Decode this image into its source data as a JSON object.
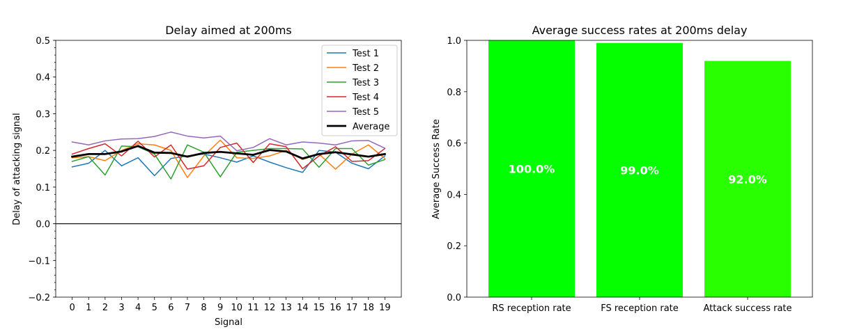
{
  "chart_data": [
    {
      "type": "line",
      "title": "Delay aimed at 200ms",
      "xlabel": "Signal",
      "ylabel": "Delay of attacking signal",
      "xlim": [
        -1,
        20
      ],
      "ylim": [
        -0.2,
        0.5
      ],
      "x_ticks": [
        "0",
        "1",
        "2",
        "3",
        "4",
        "5",
        "6",
        "7",
        "8",
        "9",
        "10",
        "11",
        "12",
        "13",
        "14",
        "15",
        "16",
        "17",
        "18",
        "19"
      ],
      "y_ticks": [
        "−0.2",
        "−0.1",
        "0.0",
        "0.1",
        "0.2",
        "0.3",
        "0.4",
        "0.5"
      ],
      "y_tick_values": [
        -0.2,
        -0.1,
        0.0,
        0.1,
        0.2,
        0.3,
        0.4,
        0.5
      ],
      "grid": false,
      "zero_line": true,
      "legend_position": "top-right",
      "x": [
        0,
        1,
        2,
        3,
        4,
        5,
        6,
        7,
        8,
        9,
        10,
        11,
        12,
        13,
        14,
        15,
        16,
        17,
        18,
        19
      ],
      "series": [
        {
          "name": "Test 1",
          "color": "#1f77b4",
          "width": 1.5,
          "values": [
            0.155,
            0.165,
            0.2,
            0.158,
            0.18,
            0.131,
            0.178,
            0.185,
            0.19,
            0.18,
            0.168,
            0.185,
            0.168,
            0.153,
            0.14,
            0.2,
            0.195,
            0.165,
            0.15,
            0.185
          ]
        },
        {
          "name": "Test 2",
          "color": "#ff7f0e",
          "width": 1.5,
          "values": [
            0.18,
            0.183,
            0.172,
            0.2,
            0.218,
            0.215,
            0.2,
            0.126,
            0.185,
            0.228,
            0.18,
            0.178,
            0.185,
            0.2,
            0.175,
            0.19,
            0.149,
            0.19,
            0.215,
            0.178
          ]
        },
        {
          "name": "Test 3",
          "color": "#2ca02c",
          "width": 1.5,
          "values": [
            0.17,
            0.183,
            0.133,
            0.212,
            0.21,
            0.19,
            0.122,
            0.215,
            0.195,
            0.128,
            0.195,
            0.2,
            0.205,
            0.205,
            0.204,
            0.154,
            0.205,
            0.205,
            0.16,
            0.175
          ]
        },
        {
          "name": "Test 4",
          "color": "#d62728",
          "width": 1.5,
          "values": [
            0.19,
            0.205,
            0.218,
            0.185,
            0.225,
            0.182,
            0.215,
            0.149,
            0.158,
            0.208,
            0.22,
            0.167,
            0.218,
            0.21,
            0.15,
            0.185,
            0.21,
            0.17,
            0.172,
            0.205
          ]
        },
        {
          "name": "Test 5",
          "color": "#9467bd",
          "width": 1.5,
          "values": [
            0.223,
            0.215,
            0.226,
            0.231,
            0.232,
            0.238,
            0.25,
            0.239,
            0.234,
            0.239,
            0.199,
            0.208,
            0.232,
            0.215,
            0.223,
            0.22,
            0.215,
            0.226,
            0.227,
            0.206
          ]
        },
        {
          "name": "Average",
          "color": "#000000",
          "width": 2.8,
          "values": [
            0.183,
            0.19,
            0.19,
            0.197,
            0.212,
            0.194,
            0.193,
            0.183,
            0.193,
            0.196,
            0.192,
            0.188,
            0.201,
            0.197,
            0.178,
            0.19,
            0.195,
            0.189,
            0.183,
            0.19
          ]
        }
      ]
    },
    {
      "type": "bar",
      "title": "Average success rates at 200ms delay",
      "xlabel": "",
      "ylabel": "Average Success Rate",
      "ylim": [
        0,
        1.0
      ],
      "y_ticks": [
        "0.0",
        "0.2",
        "0.4",
        "0.6",
        "0.8",
        "1.0"
      ],
      "y_tick_values": [
        0.0,
        0.2,
        0.4,
        0.6,
        0.8,
        1.0
      ],
      "grid": false,
      "categories": [
        "RS reception rate",
        "FS reception rate",
        "Attack success rate"
      ],
      "values": [
        1.0,
        0.99,
        0.92
      ],
      "labels": [
        "100.0%",
        "99.0%",
        "92.0%"
      ],
      "colors": [
        "#00ff00",
        "#05ff00",
        "#29ff00"
      ],
      "label_color": "#ffffff"
    }
  ]
}
